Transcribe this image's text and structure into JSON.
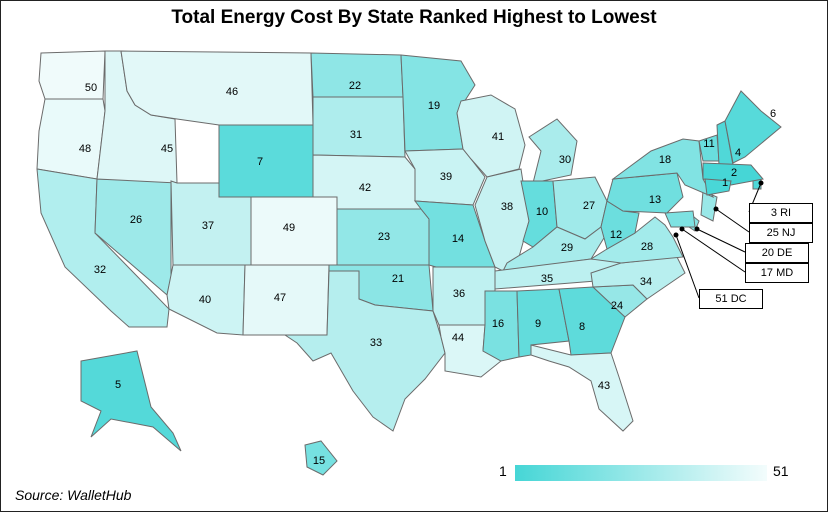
{
  "title": "Total Energy Cost By State Ranked Highest to Lowest",
  "source": "Source: WalletHub",
  "legend": {
    "min_label": "1",
    "max_label": "51",
    "min_color": "#46d6d6",
    "max_color": "#f3fcfc"
  },
  "colors": {
    "border": "#6b6b6b",
    "low_rank": "#46d6d6",
    "high_rank": "#f3fcfc"
  },
  "states": [
    {
      "code": "WA",
      "rank": "50"
    },
    {
      "code": "OR",
      "rank": "48"
    },
    {
      "code": "CA",
      "rank": "32"
    },
    {
      "code": "NV",
      "rank": "26"
    },
    {
      "code": "ID",
      "rank": "45"
    },
    {
      "code": "MT",
      "rank": "46"
    },
    {
      "code": "WY",
      "rank": "7"
    },
    {
      "code": "UT",
      "rank": "37"
    },
    {
      "code": "CO",
      "rank": "49"
    },
    {
      "code": "AZ",
      "rank": "40"
    },
    {
      "code": "NM",
      "rank": "47"
    },
    {
      "code": "ND",
      "rank": "22"
    },
    {
      "code": "SD",
      "rank": "31"
    },
    {
      "code": "NE",
      "rank": "42"
    },
    {
      "code": "KS",
      "rank": "23"
    },
    {
      "code": "OK",
      "rank": "21"
    },
    {
      "code": "TX",
      "rank": "33"
    },
    {
      "code": "MN",
      "rank": "19"
    },
    {
      "code": "IA",
      "rank": "39"
    },
    {
      "code": "MO",
      "rank": "14"
    },
    {
      "code": "AR",
      "rank": "36"
    },
    {
      "code": "LA",
      "rank": "44"
    },
    {
      "code": "WI",
      "rank": "41"
    },
    {
      "code": "IL",
      "rank": "38"
    },
    {
      "code": "MI",
      "rank": "30"
    },
    {
      "code": "IN",
      "rank": "10"
    },
    {
      "code": "OH",
      "rank": "27"
    },
    {
      "code": "KY",
      "rank": "29"
    },
    {
      "code": "TN",
      "rank": "35"
    },
    {
      "code": "MS",
      "rank": "16"
    },
    {
      "code": "AL",
      "rank": "9"
    },
    {
      "code": "GA",
      "rank": "8"
    },
    {
      "code": "FL",
      "rank": "43"
    },
    {
      "code": "SC",
      "rank": "24"
    },
    {
      "code": "NC",
      "rank": "34"
    },
    {
      "code": "VA",
      "rank": "28"
    },
    {
      "code": "WV",
      "rank": "12"
    },
    {
      "code": "PA",
      "rank": "13"
    },
    {
      "code": "NY",
      "rank": "18"
    },
    {
      "code": "VT",
      "rank": "11"
    },
    {
      "code": "NH",
      "rank": "4"
    },
    {
      "code": "ME",
      "rank": "6"
    },
    {
      "code": "MA",
      "rank": "1"
    },
    {
      "code": "CT",
      "rank": "2"
    },
    {
      "code": "AK",
      "rank": "5"
    },
    {
      "code": "HI",
      "rank": "15"
    }
  ],
  "callouts": [
    {
      "code": "RI",
      "label": "3 RI"
    },
    {
      "code": "NJ",
      "label": "25 NJ"
    },
    {
      "code": "DE",
      "label": "20 DE"
    },
    {
      "code": "MD",
      "label": "17 MD"
    },
    {
      "code": "DC",
      "label": "51 DC"
    }
  ]
}
